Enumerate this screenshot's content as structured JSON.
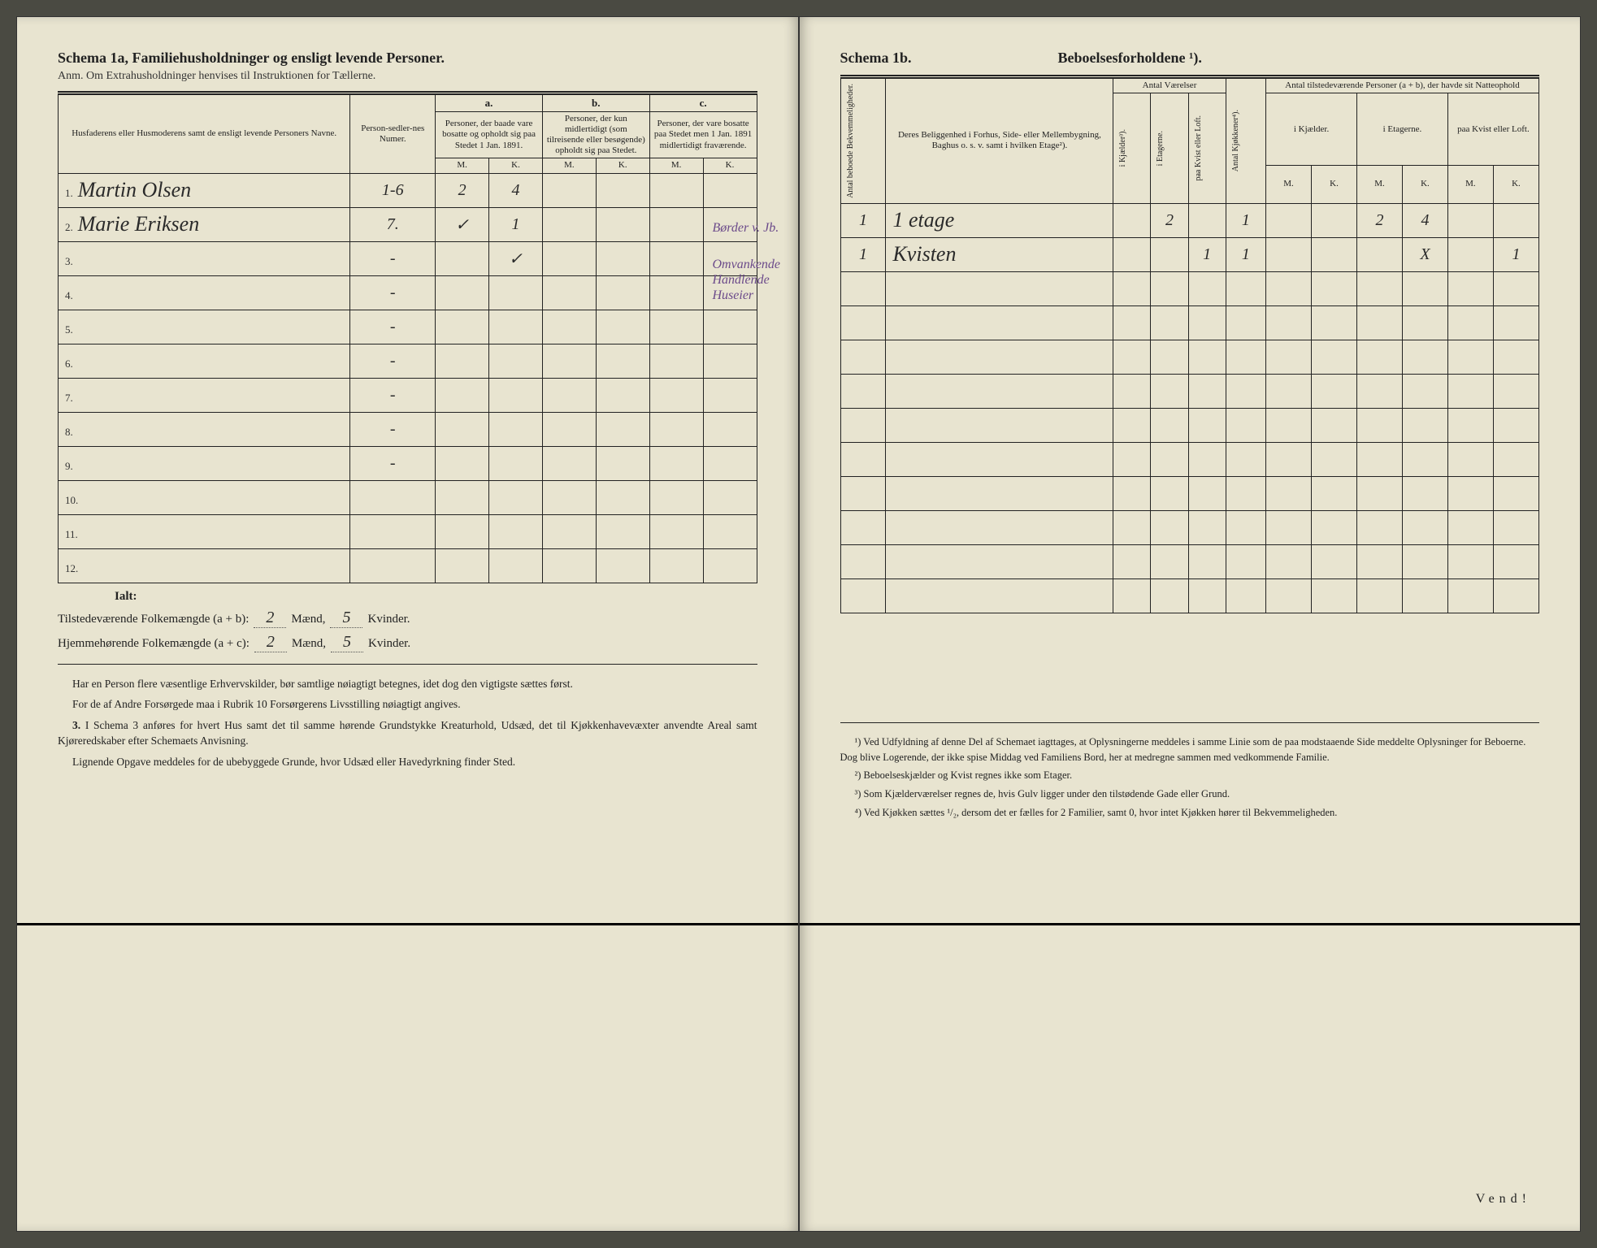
{
  "left": {
    "schema_label": "Schema 1a,",
    "schema_title": "Familiehusholdninger og ensligt levende Personer.",
    "anm": "Anm. Om Extrahusholdninger henvises til Instruktionen for Tællerne.",
    "col_name": "Husfaderens eller Husmoderens samt de ensligt levende Personers Navne.",
    "col_sedler": "Person-sedler-nes Numer.",
    "sec_a": "a.",
    "sec_a_text": "Personer, der baade vare bosatte og opholdt sig paa Stedet 1 Jan. 1891.",
    "sec_b": "b.",
    "sec_b_text": "Personer, der kun midlertidigt (som tilreisende eller besøgende) opholdt sig paa Stedet.",
    "sec_c": "c.",
    "sec_c_text": "Personer, der vare bosatte paa Stedet men 1 Jan. 1891 midlertidigt fraværende.",
    "M": "M.",
    "K": "K.",
    "rows": [
      {
        "n": "1.",
        "name": "Martin Olsen",
        "sedler": "1-6",
        "aM": "2",
        "aK": "4",
        "bM": "",
        "bK": "",
        "cM": "",
        "cK": ""
      },
      {
        "n": "2.",
        "name": "Marie Eriksen",
        "sedler": "7.",
        "aM": "✓",
        "aK": "1",
        "bM": "",
        "bK": "",
        "cM": "",
        "cK": ""
      },
      {
        "n": "3.",
        "name": "",
        "sedler": "-",
        "aM": "",
        "aK": "✓",
        "bM": "",
        "bK": "",
        "cM": "",
        "cK": ""
      },
      {
        "n": "4.",
        "name": "",
        "sedler": "-",
        "aM": "",
        "aK": "",
        "bM": "",
        "bK": "",
        "cM": "",
        "cK": ""
      },
      {
        "n": "5.",
        "name": "",
        "sedler": "-",
        "aM": "",
        "aK": "",
        "bM": "",
        "bK": "",
        "cM": "",
        "cK": ""
      },
      {
        "n": "6.",
        "name": "",
        "sedler": "-",
        "aM": "",
        "aK": "",
        "bM": "",
        "bK": "",
        "cM": "",
        "cK": ""
      },
      {
        "n": "7.",
        "name": "",
        "sedler": "-",
        "aM": "",
        "aK": "",
        "bM": "",
        "bK": "",
        "cM": "",
        "cK": ""
      },
      {
        "n": "8.",
        "name": "",
        "sedler": "-",
        "aM": "",
        "aK": "",
        "bM": "",
        "bK": "",
        "cM": "",
        "cK": ""
      },
      {
        "n": "9.",
        "name": "",
        "sedler": "-",
        "aM": "",
        "aK": "",
        "bM": "",
        "bK": "",
        "cM": "",
        "cK": ""
      },
      {
        "n": "10.",
        "name": "",
        "sedler": "",
        "aM": "",
        "aK": "",
        "bM": "",
        "bK": "",
        "cM": "",
        "cK": ""
      },
      {
        "n": "11.",
        "name": "",
        "sedler": "",
        "aM": "",
        "aK": "",
        "bM": "",
        "bK": "",
        "cM": "",
        "cK": ""
      },
      {
        "n": "12.",
        "name": "",
        "sedler": "",
        "aM": "",
        "aK": "",
        "bM": "",
        "bK": "",
        "cM": "",
        "cK": ""
      }
    ],
    "ialt": "Ialt:",
    "tot1_label": "Tilstedeværende Folkemængde (a + b):",
    "tot1_m": "2",
    "tot1_m_unit": "Mænd,",
    "tot1_k": "5",
    "tot1_k_unit": "Kvinder.",
    "tot2_label": "Hjemmehørende Folkemængde (a + c):",
    "tot2_m": "2",
    "tot2_m_unit": "Mænd,",
    "tot2_k": "5",
    "tot2_k_unit": "Kvinder.",
    "para1": "Har en Person flere væsentlige Erhvervskilder, bør samtlige nøiagtigt betegnes, idet dog den vigtigste sættes først.",
    "para2": "For de af Andre Forsørgede maa i Rubrik 10 Forsørgerens Livsstilling nøiagtigt angives.",
    "para3_label": "3.",
    "para3": "I Schema 3 anføres for hvert Hus samt det til samme hørende Grundstykke Kreaturhold, Udsæd, det til Kjøkkenhavevæxter anvendte Areal samt Kjøreredskaber efter Schemaets Anvisning.",
    "para4": "Lignende Opgave meddeles for de ubebyggede Grunde, hvor Udsæd eller Havedyrkning finder Sted.",
    "margin_note1": "Børder v. Jb.",
    "margin_note2": "Omvankende Handlende Huseier"
  },
  "right": {
    "schema_label": "Schema 1b.",
    "schema_title": "Beboelsesforholdene ¹).",
    "col_antal_bekv": "Antal beboede Bekvemmeligheder.",
    "col_beliggenhed": "Deres Beliggenhed i Forhus, Side- eller Mellembygning, Baghus o. s. v. samt i hvilken Etage²).",
    "col_vaerelser": "Antal Værelser",
    "col_kjokkener": "Antal Kjøkkener⁴).",
    "col_kjaelder": "i Kjælder³).",
    "col_etagerne": "i Etagerne.",
    "col_kvist": "paa Kvist eller Loft.",
    "col_tilstedevaerende": "Antal tilstedeværende Personer (a + b), der havde sit Natteophold",
    "col_ikjaelder": "i Kjælder.",
    "col_ietagerne": "i Etagerne.",
    "col_paakvist": "paa Kvist eller Loft.",
    "M": "M.",
    "K": "K.",
    "rows": [
      {
        "bekv": "1",
        "belig": "1 etage",
        "vk": "",
        "ve": "2",
        "vkv": "",
        "kjok": "1",
        "kjM": "",
        "kjK": "",
        "etM": "2",
        "etK": "4",
        "kvM": "",
        "kvK": ""
      },
      {
        "bekv": "1",
        "belig": "Kvisten",
        "vk": "",
        "ve": "",
        "vkv": "1",
        "kjok": "1",
        "kjM": "",
        "kjK": "",
        "etM": "",
        "etK": "X",
        "kvM": "",
        "kvK": "1"
      },
      {
        "bekv": "",
        "belig": "",
        "vk": "",
        "ve": "",
        "vkv": "",
        "kjok": "",
        "kjM": "",
        "kjK": "",
        "etM": "",
        "etK": "",
        "kvM": "",
        "kvK": ""
      },
      {
        "bekv": "",
        "belig": "",
        "vk": "",
        "ve": "",
        "vkv": "",
        "kjok": "",
        "kjM": "",
        "kjK": "",
        "etM": "",
        "etK": "",
        "kvM": "",
        "kvK": ""
      },
      {
        "bekv": "",
        "belig": "",
        "vk": "",
        "ve": "",
        "vkv": "",
        "kjok": "",
        "kjM": "",
        "kjK": "",
        "etM": "",
        "etK": "",
        "kvM": "",
        "kvK": ""
      },
      {
        "bekv": "",
        "belig": "",
        "vk": "",
        "ve": "",
        "vkv": "",
        "kjok": "",
        "kjM": "",
        "kjK": "",
        "etM": "",
        "etK": "",
        "kvM": "",
        "kvK": ""
      },
      {
        "bekv": "",
        "belig": "",
        "vk": "",
        "ve": "",
        "vkv": "",
        "kjok": "",
        "kjM": "",
        "kjK": "",
        "etM": "",
        "etK": "",
        "kvM": "",
        "kvK": ""
      },
      {
        "bekv": "",
        "belig": "",
        "vk": "",
        "ve": "",
        "vkv": "",
        "kjok": "",
        "kjM": "",
        "kjK": "",
        "etM": "",
        "etK": "",
        "kvM": "",
        "kvK": ""
      },
      {
        "bekv": "",
        "belig": "",
        "vk": "",
        "ve": "",
        "vkv": "",
        "kjok": "",
        "kjM": "",
        "kjK": "",
        "etM": "",
        "etK": "",
        "kvM": "",
        "kvK": ""
      },
      {
        "bekv": "",
        "belig": "",
        "vk": "",
        "ve": "",
        "vkv": "",
        "kjok": "",
        "kjM": "",
        "kjK": "",
        "etM": "",
        "etK": "",
        "kvM": "",
        "kvK": ""
      },
      {
        "bekv": "",
        "belig": "",
        "vk": "",
        "ve": "",
        "vkv": "",
        "kjok": "",
        "kjM": "",
        "kjK": "",
        "etM": "",
        "etK": "",
        "kvM": "",
        "kvK": ""
      },
      {
        "bekv": "",
        "belig": "",
        "vk": "",
        "ve": "",
        "vkv": "",
        "kjok": "",
        "kjM": "",
        "kjK": "",
        "etM": "",
        "etK": "",
        "kvM": "",
        "kvK": ""
      }
    ],
    "fn1": "¹) Ved Udfyldning af denne Del af Schemaet iagttages, at Oplysningerne meddeles i samme Linie som de paa modstaaende Side meddelte Oplysninger for Beboerne. Dog blive Logerende, der ikke spise Middag ved Familiens Bord, her at medregne sammen med vedkommende Familie.",
    "fn2": "²) Beboelseskjælder og Kvist regnes ikke som Etager.",
    "fn3": "³) Som Kjælderværelser regnes de, hvis Gulv ligger under den tilstødende Gade eller Grund.",
    "fn4": "⁴) Ved Kjøkken sættes ¹/₂, dersom det er fælles for 2 Familier, samt 0, hvor intet Kjøkken hører til Bekvemmeligheden.",
    "vend": "Vend!"
  }
}
